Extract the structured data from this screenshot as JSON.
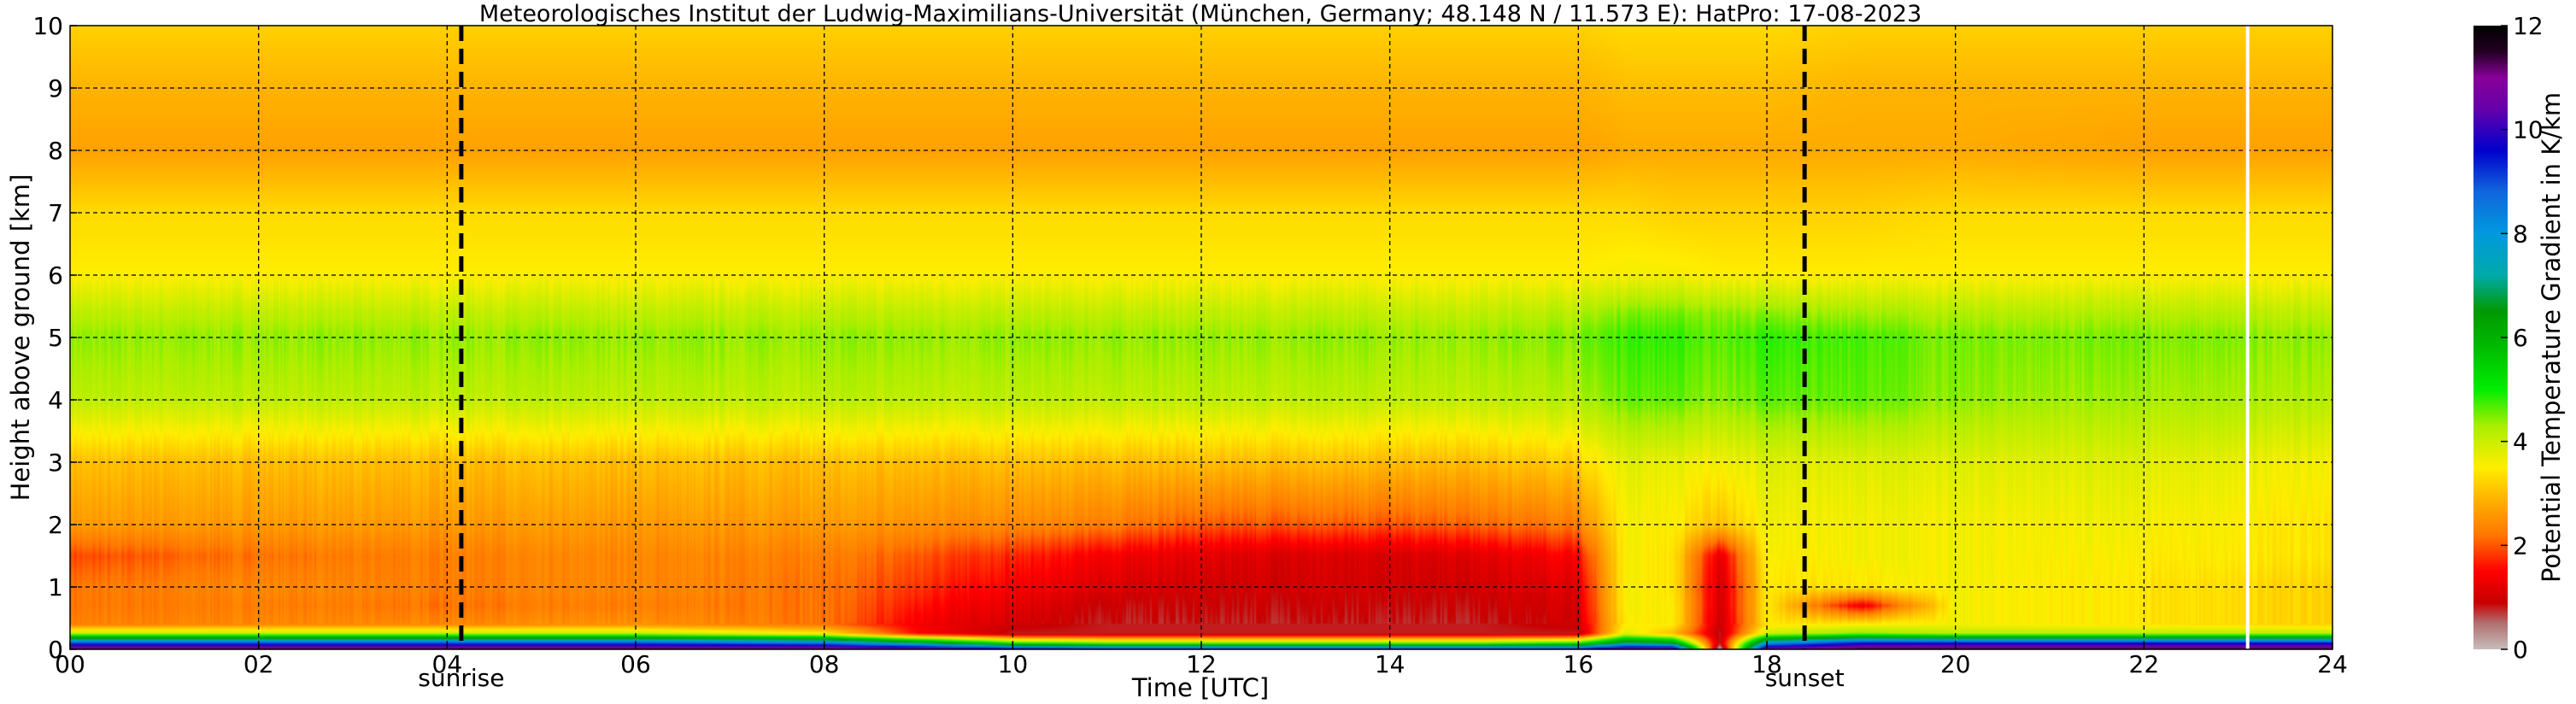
{
  "chart_data": {
    "type": "heatmap",
    "title": "Meteorologisches Institut der Ludwig-Maximilians-Universität (München, Germany; 48.148 N / 11.573 E):    HatPro: 17-08-2023",
    "xlabel": "Time [UTC]",
    "ylabel": "Height above ground [km]",
    "xlim": [
      0,
      24
    ],
    "ylim": [
      0,
      10
    ],
    "x_ticks": [
      "00",
      "02",
      "04",
      "06",
      "08",
      "10",
      "12",
      "14",
      "16",
      "18",
      "20",
      "22",
      "24"
    ],
    "y_ticks": [
      "0",
      "1",
      "2",
      "3",
      "4",
      "5",
      "6",
      "7",
      "8",
      "9",
      "10"
    ],
    "grid": true,
    "events": [
      {
        "label": "sunrise",
        "x": 4.15
      },
      {
        "label": "sunset",
        "x": 18.4
      }
    ],
    "end_of_data_x": 23.1,
    "colorbar": {
      "label": "Potential Temperature Gradient in K/km",
      "range": [
        0,
        12
      ],
      "ticks": [
        "0",
        "2",
        "4",
        "6",
        "8",
        "10",
        "12"
      ],
      "stops": [
        {
          "v": 0.0,
          "color": "#c8bcbc"
        },
        {
          "v": 0.5,
          "color": "#b07070"
        },
        {
          "v": 0.9,
          "color": "#c80000"
        },
        {
          "v": 1.5,
          "color": "#ff0000"
        },
        {
          "v": 2.2,
          "color": "#ff7700"
        },
        {
          "v": 2.8,
          "color": "#ffaa00"
        },
        {
          "v": 3.5,
          "color": "#ffee00"
        },
        {
          "v": 4.3,
          "color": "#aaee00"
        },
        {
          "v": 5.0,
          "color": "#00ee00"
        },
        {
          "v": 5.8,
          "color": "#00bb00"
        },
        {
          "v": 6.5,
          "color": "#009900"
        },
        {
          "v": 7.2,
          "color": "#00aaaa"
        },
        {
          "v": 8.0,
          "color": "#0099dd"
        },
        {
          "v": 8.8,
          "color": "#1166dd"
        },
        {
          "v": 9.6,
          "color": "#0000cc"
        },
        {
          "v": 10.4,
          "color": "#6600aa"
        },
        {
          "v": 11.0,
          "color": "#880099"
        },
        {
          "v": 11.5,
          "color": "#220022"
        },
        {
          "v": 12.0,
          "color": "#000000"
        }
      ]
    },
    "field": {
      "t": [
        0,
        2,
        4,
        6,
        8,
        9,
        10,
        11,
        12,
        13,
        14,
        15,
        16,
        16.5,
        17,
        17.5,
        18,
        19,
        20,
        22,
        24
      ],
      "h": [
        0.0,
        0.1,
        0.25,
        0.4,
        0.7,
        1.0,
        1.5,
        2.0,
        3.0,
        4.0,
        5.0,
        5.4,
        6.0,
        7.0,
        8.0,
        9.0,
        10.0
      ],
      "z": [
        [
          11.5,
          11.5,
          11.5,
          11.5,
          11.5,
          11.0,
          10.0,
          9.5,
          9.5,
          9.5,
          9.5,
          9.5,
          9.5,
          11.0,
          11.0,
          0.0,
          11.0,
          11.5,
          11.5,
          11.5,
          11.5
        ],
        [
          9.0,
          9.0,
          9.0,
          9.0,
          8.5,
          7.0,
          5.0,
          4.5,
          4.5,
          4.5,
          4.5,
          4.5,
          5.0,
          7.0,
          6.5,
          0.8,
          8.0,
          9.5,
          9.5,
          9.5,
          9.5
        ],
        [
          4.2,
          4.2,
          4.2,
          4.2,
          3.5,
          1.5,
          0.8,
          0.8,
          0.8,
          0.8,
          0.8,
          0.8,
          0.8,
          3.8,
          3.0,
          0.8,
          4.0,
          4.5,
          4.2,
          4.2,
          4.2
        ],
        [
          2.3,
          2.4,
          2.4,
          2.5,
          2.2,
          1.4,
          1.0,
          0.8,
          0.8,
          0.8,
          0.8,
          0.8,
          1.0,
          3.5,
          3.5,
          0.9,
          3.4,
          3.5,
          3.6,
          3.4,
          3.2
        ],
        [
          2.2,
          2.3,
          2.2,
          2.3,
          2.2,
          1.6,
          1.2,
          0.9,
          0.9,
          0.9,
          0.9,
          0.9,
          1.1,
          3.6,
          3.5,
          1.0,
          3.4,
          1.3,
          3.6,
          3.4,
          3.2
        ],
        [
          2.2,
          2.4,
          2.3,
          2.4,
          2.2,
          1.8,
          1.4,
          1.1,
          1.0,
          1.0,
          1.0,
          1.0,
          1.2,
          3.6,
          3.4,
          1.0,
          3.4,
          3.4,
          3.6,
          3.4,
          3.2
        ],
        [
          1.9,
          2.2,
          2.3,
          2.4,
          2.3,
          2.0,
          1.7,
          1.4,
          1.2,
          1.1,
          1.1,
          1.2,
          1.5,
          3.6,
          3.4,
          1.2,
          3.5,
          3.6,
          3.6,
          3.5,
          3.4
        ],
        [
          2.6,
          2.6,
          2.6,
          2.6,
          2.6,
          2.5,
          2.4,
          2.3,
          2.0,
          2.0,
          2.0,
          2.1,
          2.3,
          3.6,
          3.5,
          3.0,
          3.6,
          3.6,
          3.6,
          3.6,
          3.4
        ],
        [
          3.0,
          3.0,
          3.0,
          3.0,
          3.0,
          3.0,
          3.0,
          3.0,
          3.0,
          3.0,
          3.0,
          3.0,
          3.2,
          3.8,
          3.7,
          3.6,
          3.8,
          3.8,
          3.8,
          3.8,
          3.6
        ],
        [
          4.1,
          4.1,
          4.1,
          4.1,
          4.1,
          4.1,
          4.1,
          4.1,
          4.1,
          4.1,
          4.1,
          4.1,
          4.2,
          4.6,
          4.6,
          4.4,
          4.6,
          4.6,
          4.4,
          4.3,
          4.2
        ],
        [
          4.4,
          4.4,
          4.4,
          4.4,
          4.4,
          4.4,
          4.4,
          4.4,
          4.4,
          4.4,
          4.4,
          4.4,
          4.5,
          4.8,
          4.8,
          4.6,
          4.8,
          4.7,
          4.5,
          4.5,
          4.4
        ],
        [
          4.1,
          4.1,
          4.1,
          4.1,
          4.1,
          4.1,
          4.1,
          4.1,
          4.1,
          4.1,
          4.1,
          4.1,
          4.2,
          4.5,
          4.5,
          4.4,
          4.4,
          4.3,
          4.2,
          4.2,
          4.1
        ],
        [
          3.5,
          3.5,
          3.5,
          3.5,
          3.5,
          3.5,
          3.5,
          3.5,
          3.5,
          3.5,
          3.5,
          3.5,
          3.5,
          3.6,
          3.6,
          3.5,
          3.5,
          3.5,
          3.5,
          3.5,
          3.5
        ],
        [
          3.3,
          3.3,
          3.3,
          3.3,
          3.3,
          3.3,
          3.3,
          3.3,
          3.3,
          3.3,
          3.3,
          3.3,
          3.3,
          3.3,
          3.2,
          3.2,
          3.2,
          3.2,
          3.3,
          3.3,
          3.3
        ],
        [
          2.7,
          2.7,
          2.7,
          2.7,
          2.7,
          2.7,
          2.7,
          2.7,
          2.7,
          2.7,
          2.7,
          2.7,
          2.7,
          2.8,
          2.8,
          2.8,
          2.8,
          2.8,
          2.8,
          2.7,
          2.7
        ],
        [
          2.9,
          2.9,
          2.9,
          2.9,
          2.9,
          2.9,
          2.9,
          2.9,
          2.9,
          2.9,
          2.9,
          2.9,
          2.9,
          3.0,
          3.0,
          3.0,
          3.0,
          2.9,
          2.9,
          2.9,
          2.9
        ],
        [
          3.2,
          3.2,
          3.2,
          3.2,
          3.2,
          3.2,
          3.2,
          3.2,
          3.2,
          3.2,
          3.2,
          3.2,
          3.2,
          3.3,
          3.3,
          3.3,
          3.3,
          3.2,
          3.2,
          3.2,
          3.2
        ]
      ]
    }
  }
}
